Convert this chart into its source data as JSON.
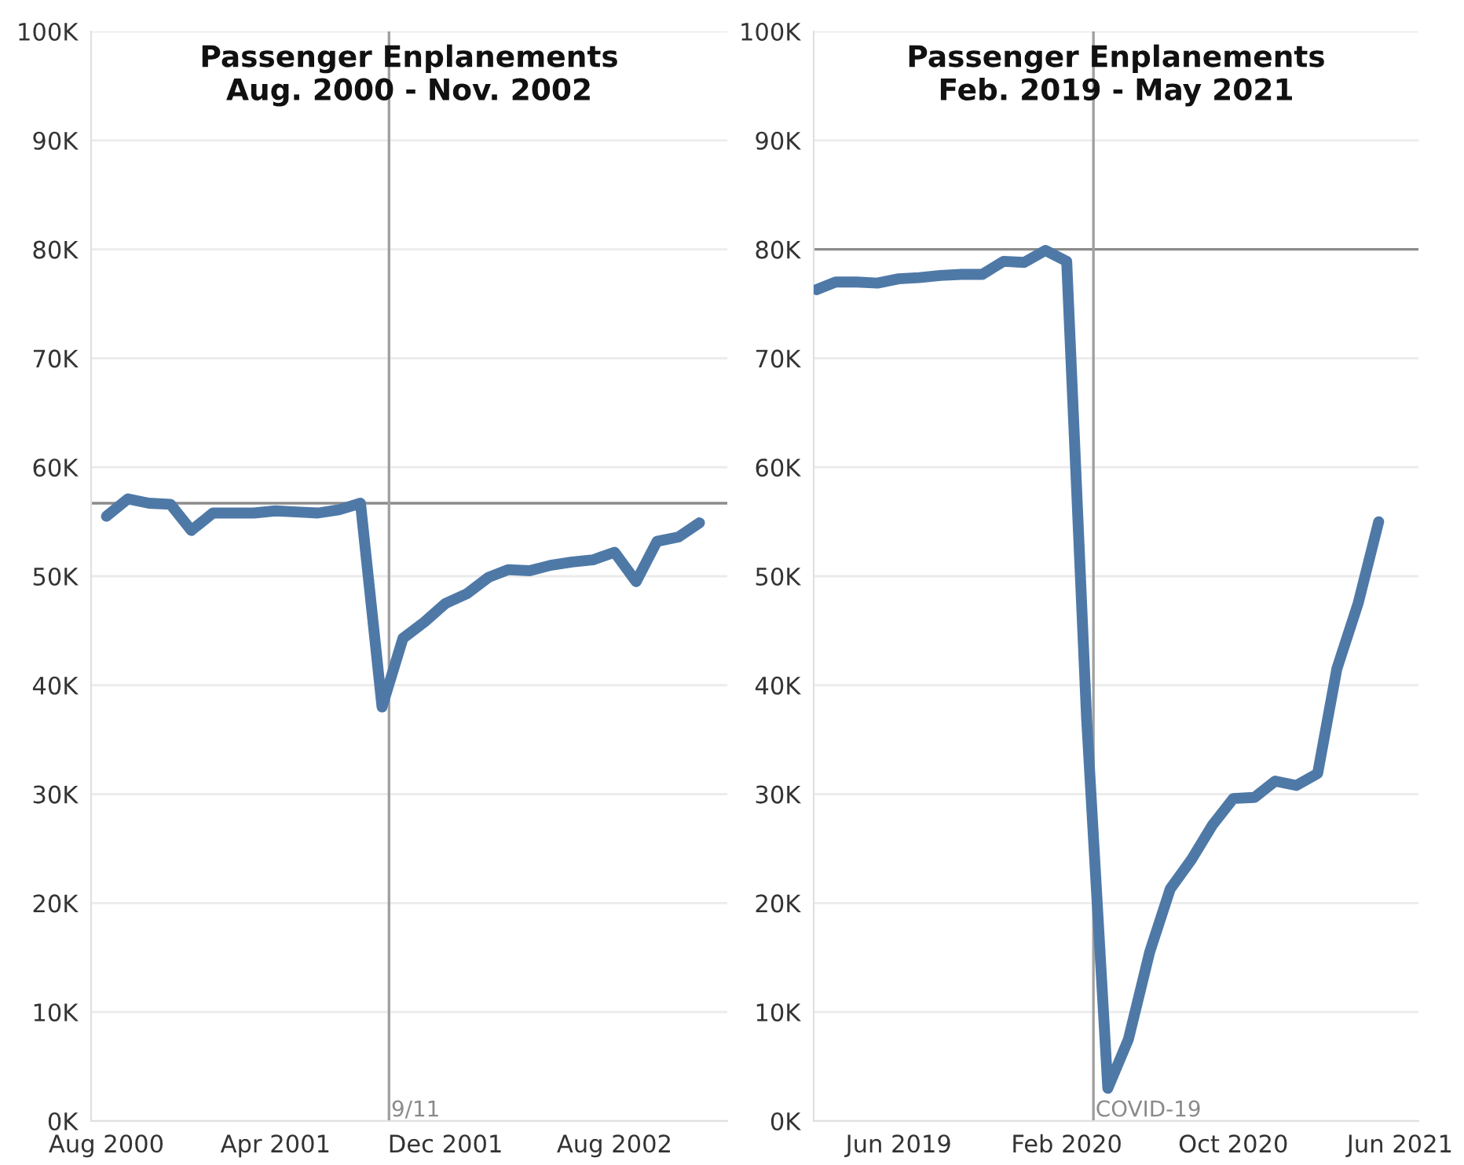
{
  "chart_data": [
    {
      "type": "line",
      "title": "Passenger Enplanements\nAug. 2000 - Nov. 2002",
      "x": [
        "2000-08",
        "2000-09",
        "2000-10",
        "2000-11",
        "2000-12",
        "2001-01",
        "2001-02",
        "2001-03",
        "2001-04",
        "2001-05",
        "2001-06",
        "2001-07",
        "2001-08",
        "2001-09",
        "2001-10",
        "2001-11",
        "2001-12",
        "2002-01",
        "2002-02",
        "2002-03",
        "2002-04",
        "2002-05",
        "2002-06",
        "2002-07",
        "2002-08",
        "2002-09",
        "2002-10",
        "2002-11",
        "2002-12"
      ],
      "series": [
        {
          "color": "#4e79a7",
          "values": [
            55500,
            57100,
            56700,
            56600,
            54200,
            55800,
            55800,
            55800,
            56000,
            55900,
            55800,
            56100,
            56700,
            38000,
            44300,
            45800,
            47500,
            48400,
            49900,
            50600,
            50500,
            51000,
            51300,
            51500,
            52200,
            49500,
            53200,
            53600,
            54900
          ]
        }
      ],
      "xlim": [
        "2000-07-10",
        "2003-01-10"
      ],
      "xticks": [
        {
          "value": "2000-08",
          "label": "Aug 2000"
        },
        {
          "value": "2001-04",
          "label": "Apr 2001"
        },
        {
          "value": "2001-12",
          "label": "Dec 2001"
        },
        {
          "value": "2002-08",
          "label": "Aug 2002"
        }
      ],
      "ylim": [
        0,
        100000
      ],
      "yticks": [
        {
          "value": 0,
          "label": "0K"
        },
        {
          "value": 10000,
          "label": "10K"
        },
        {
          "value": 20000,
          "label": "20K"
        },
        {
          "value": 30000,
          "label": "30K"
        },
        {
          "value": 40000,
          "label": "40K"
        },
        {
          "value": 50000,
          "label": "50K"
        },
        {
          "value": 60000,
          "label": "60K"
        },
        {
          "value": 70000,
          "label": "70K"
        },
        {
          "value": 80000,
          "label": "80K"
        },
        {
          "value": 90000,
          "label": "90K"
        },
        {
          "value": 100000,
          "label": "100K"
        }
      ],
      "ref_lines": [
        {
          "axis": "y",
          "value": 56700,
          "label": null,
          "color": "#8c8c8c"
        },
        {
          "axis": "x",
          "value": "2001-09-11",
          "label": "9/11",
          "color": "#a0a0a0"
        }
      ],
      "grid": "y",
      "legend": false,
      "marker": "none",
      "line_style": "solid"
    },
    {
      "type": "line",
      "title": "Passenger Enplanements\nFeb. 2019 - May 2021",
      "x": [
        "2019-02",
        "2019-03",
        "2019-04",
        "2019-05",
        "2019-06",
        "2019-07",
        "2019-08",
        "2019-09",
        "2019-10",
        "2019-11",
        "2019-12",
        "2020-01",
        "2020-02",
        "2020-03",
        "2020-04",
        "2020-05",
        "2020-06",
        "2020-07",
        "2020-08",
        "2020-09",
        "2020-10",
        "2020-11",
        "2020-12",
        "2021-01",
        "2021-02",
        "2021-03",
        "2021-04",
        "2021-05"
      ],
      "series": [
        {
          "color": "#4e79a7",
          "values": [
            76300,
            77000,
            77000,
            76900,
            77300,
            77400,
            77600,
            77700,
            77700,
            78900,
            78800,
            79900,
            78900,
            37000,
            3000,
            7500,
            15500,
            21300,
            24000,
            27200,
            29600,
            29700,
            31200,
            30800,
            31900,
            41500,
            47500,
            55000
          ]
        }
      ],
      "xlim": [
        "2019-01-28",
        "2021-06-28"
      ],
      "xticks": [
        {
          "value": "2019-06",
          "label": "Jun 2019"
        },
        {
          "value": "2020-02",
          "label": "Feb 2020"
        },
        {
          "value": "2020-10",
          "label": "Oct 2020"
        },
        {
          "value": "2021-06",
          "label": "Jun 2021"
        }
      ],
      "ylim": [
        0,
        100000
      ],
      "yticks": [
        {
          "value": 0,
          "label": "0K"
        },
        {
          "value": 10000,
          "label": "10K"
        },
        {
          "value": 20000,
          "label": "20K"
        },
        {
          "value": 30000,
          "label": "30K"
        },
        {
          "value": 40000,
          "label": "40K"
        },
        {
          "value": 50000,
          "label": "50K"
        },
        {
          "value": 60000,
          "label": "60K"
        },
        {
          "value": 70000,
          "label": "70K"
        },
        {
          "value": 80000,
          "label": "80K"
        },
        {
          "value": 90000,
          "label": "90K"
        },
        {
          "value": 100000,
          "label": "100K"
        }
      ],
      "ref_lines": [
        {
          "axis": "y",
          "value": 80000,
          "label": null,
          "color": "#8c8c8c"
        },
        {
          "axis": "x",
          "value": "2020-03-11",
          "label": "COVID-19",
          "color": "#a0a0a0"
        }
      ],
      "grid": "y",
      "legend": false,
      "marker": "none",
      "line_style": "solid"
    }
  ]
}
